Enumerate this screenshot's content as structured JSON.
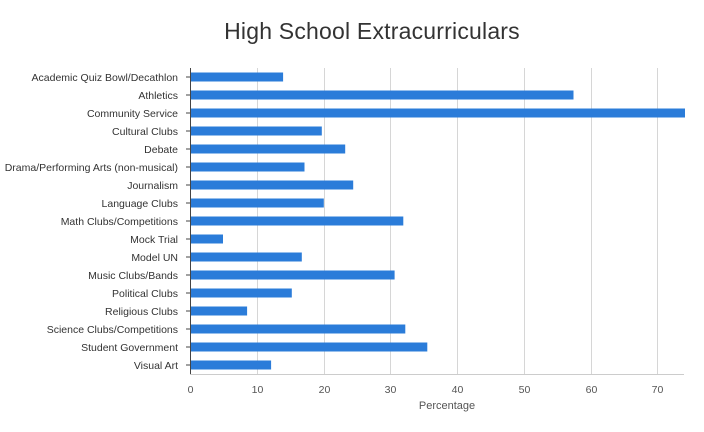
{
  "chart_data": {
    "type": "bar",
    "orientation": "horizontal",
    "title": "High School Extracurriculars",
    "xlabel": "Percentage",
    "ylabel": "",
    "xlim": [
      0,
      74
    ],
    "x_ticks": [
      0,
      10,
      20,
      30,
      40,
      50,
      60,
      70
    ],
    "grid": true,
    "legend": "none",
    "bar_color": "#2b7cd9",
    "categories": [
      "Academic Quiz Bowl/Decathlon",
      "Athletics",
      "Community Service",
      "Cultural Clubs",
      "Debate",
      "Drama/Performing Arts (non-musical)",
      "Journalism",
      "Language Clubs",
      "Math Clubs/Competitions",
      "Mock Trial",
      "Model UN",
      "Music Clubs/Bands",
      "Political Clubs",
      "Religious Clubs",
      "Science Clubs/Competitions",
      "Student Government",
      "Visual Art"
    ],
    "values": [
      13.8,
      57.3,
      74.0,
      19.6,
      23.1,
      17.0,
      24.3,
      19.9,
      31.8,
      4.8,
      16.6,
      30.5,
      15.1,
      8.4,
      32.1,
      35.4,
      12.0
    ]
  }
}
